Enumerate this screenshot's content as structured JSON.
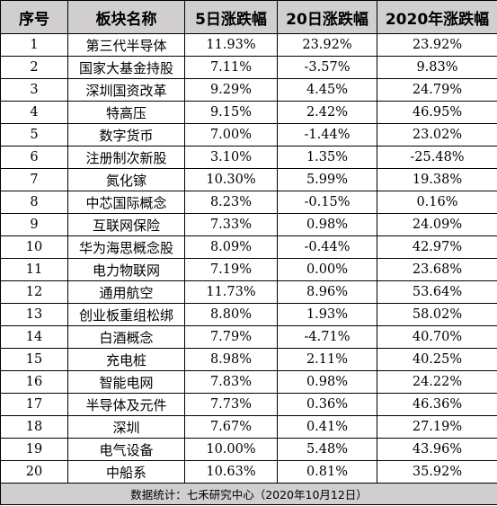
{
  "table": {
    "headers": [
      "序号",
      "板块名称",
      "5日涨跌幅",
      "20日涨跌幅",
      "2020年涨跌幅"
    ],
    "rows": [
      [
        "1",
        "第三代半导体",
        "11.93%",
        "23.92%",
        "23.92%"
      ],
      [
        "2",
        "国家大基金持股",
        "7.11%",
        "-3.57%",
        "9.83%"
      ],
      [
        "3",
        "深圳国资改革",
        "9.29%",
        "4.45%",
        "24.79%"
      ],
      [
        "4",
        "特高压",
        "9.15%",
        "2.42%",
        "46.95%"
      ],
      [
        "5",
        "数字货币",
        "7.00%",
        "-1.44%",
        "23.02%"
      ],
      [
        "6",
        "注册制次新股",
        "3.10%",
        "1.35%",
        "-25.48%"
      ],
      [
        "7",
        "氮化镓",
        "10.30%",
        "5.99%",
        "19.38%"
      ],
      [
        "8",
        "中芯国际概念",
        "8.23%",
        "-0.15%",
        "0.16%"
      ],
      [
        "9",
        "互联网保险",
        "7.33%",
        "0.98%",
        "24.09%"
      ],
      [
        "10",
        "华为海思概念股",
        "8.09%",
        "-0.44%",
        "42.97%"
      ],
      [
        "11",
        "电力物联网",
        "7.19%",
        "0.00%",
        "23.68%"
      ],
      [
        "12",
        "通用航空",
        "11.73%",
        "8.96%",
        "53.64%"
      ],
      [
        "13",
        "创业板重组松绑",
        "8.80%",
        "1.93%",
        "58.02%"
      ],
      [
        "14",
        "白酒概念",
        "7.79%",
        "-4.71%",
        "40.70%"
      ],
      [
        "15",
        "充电桩",
        "8.98%",
        "2.11%",
        "40.25%"
      ],
      [
        "16",
        "智能电网",
        "7.83%",
        "0.98%",
        "24.22%"
      ],
      [
        "17",
        "半导体及元件",
        "7.73%",
        "0.36%",
        "46.36%"
      ],
      [
        "18",
        "深圳",
        "7.67%",
        "0.41%",
        "27.19%"
      ],
      [
        "19",
        "电气设备",
        "10.00%",
        "5.48%",
        "43.96%"
      ],
      [
        "20",
        "中船系",
        "10.63%",
        "0.81%",
        "35.92%"
      ]
    ],
    "footer": "数据统计：七禾研究中心（2020年10月12日）"
  },
  "colors": {
    "header_bg": "#d0cece",
    "footer_bg": "#d0cece",
    "border": "#000000"
  }
}
